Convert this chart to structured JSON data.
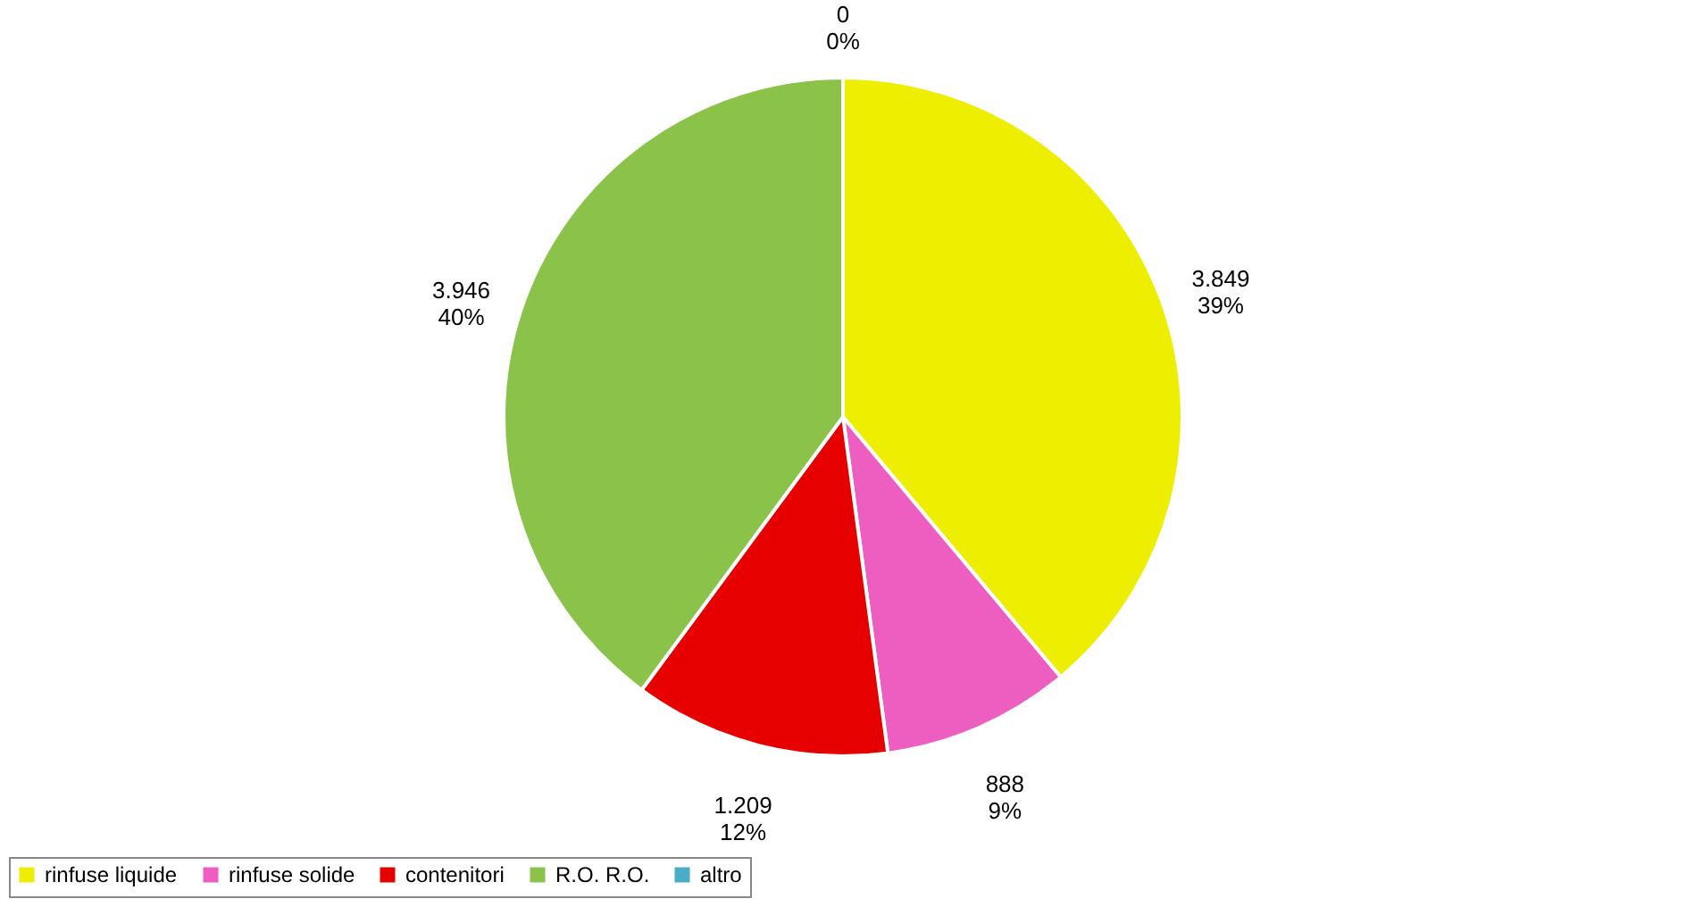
{
  "chart_data": {
    "type": "pie",
    "categories": [
      "rinfuse liquide",
      "rinfuse solide",
      "contenitori",
      "R.O. R.O.",
      "altro"
    ],
    "values": [
      3849,
      888,
      1209,
      3946,
      0
    ],
    "colors": [
      "#eeee00",
      "#ee5ec0",
      "#e60000",
      "#8bc34a",
      "#4bacc6"
    ],
    "value_labels": [
      "3.849\n39%",
      "888\n9%",
      "1.209\n12%",
      "3.946\n40%",
      "0\n0%"
    ],
    "legend": "bottom"
  }
}
